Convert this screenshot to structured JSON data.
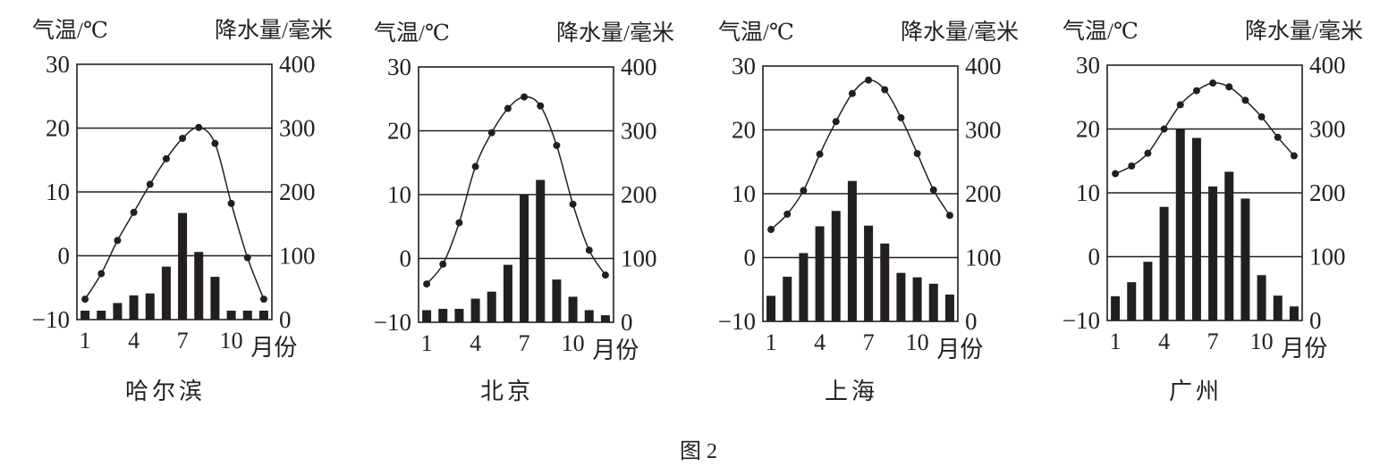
{
  "caption": "图 2",
  "chart_data": [
    {
      "type": "bar+line",
      "title": "哈尔滨",
      "ylabel_left": "气温/℃",
      "ylabel_right": "降水量/毫米",
      "xlabel": "月份",
      "x": [
        1,
        2,
        3,
        4,
        5,
        6,
        7,
        8,
        9,
        10,
        11,
        12
      ],
      "x_tick_labels": [
        "1",
        "4",
        "7",
        "10"
      ],
      "ylim_left": [
        -10,
        30
      ],
      "ylim_right": [
        0,
        400
      ],
      "left_ticks": [
        "30",
        "20",
        "10",
        "0",
        "−10"
      ],
      "right_ticks": [
        "400",
        "300",
        "200",
        "100",
        "0"
      ],
      "grid": true,
      "temperature": [
        -6.8,
        -2.8,
        2.4,
        6.8,
        11.2,
        15.2,
        18.4,
        20.1,
        17.6,
        8.2,
        -0.3,
        -6.8
      ],
      "precipitation": [
        14,
        14,
        26,
        38,
        41,
        83,
        167,
        106,
        67,
        14,
        14,
        14
      ]
    },
    {
      "type": "bar+line",
      "title": "北京",
      "ylabel_left": "气温/℃",
      "ylabel_right": "降水量/毫米",
      "xlabel": "月份",
      "x": [
        1,
        2,
        3,
        4,
        5,
        6,
        7,
        8,
        9,
        10,
        11,
        12
      ],
      "x_tick_labels": [
        "1",
        "4",
        "7",
        "10"
      ],
      "ylim_left": [
        -10,
        30
      ],
      "ylim_right": [
        0,
        400
      ],
      "left_ticks": [
        "30",
        "20",
        "10",
        "0",
        "−10"
      ],
      "right_ticks": [
        "400",
        "300",
        "200",
        "100",
        "0"
      ],
      "grid": true,
      "temperature": [
        -4.0,
        -0.9,
        5.6,
        14.4,
        19.7,
        23.5,
        25.3,
        23.9,
        17.7,
        8.5,
        1.3,
        -2.6
      ],
      "precipitation": [
        19,
        21,
        21,
        37,
        48,
        90,
        200,
        223,
        67,
        40,
        19,
        11
      ]
    },
    {
      "type": "bar+line",
      "title": "上海",
      "ylabel_left": "气温/℃",
      "ylabel_right": "降水量/毫米",
      "xlabel": "月份",
      "x": [
        1,
        2,
        3,
        4,
        5,
        6,
        7,
        8,
        9,
        10,
        11,
        12
      ],
      "x_tick_labels": [
        "1",
        "4",
        "7",
        "10"
      ],
      "ylim_left": [
        -10,
        30
      ],
      "ylim_right": [
        0,
        400
      ],
      "left_ticks": [
        "30",
        "20",
        "10",
        "0",
        "−10"
      ],
      "right_ticks": [
        "400",
        "300",
        "200",
        "100",
        "0"
      ],
      "grid": true,
      "temperature": [
        4.4,
        6.8,
        10.5,
        16.2,
        21.3,
        25.7,
        27.8,
        26.3,
        21.9,
        16.3,
        10.6,
        6.6
      ],
      "precipitation": [
        40,
        70,
        107,
        149,
        173,
        220,
        150,
        122,
        76,
        69,
        59,
        42
      ]
    },
    {
      "type": "bar+line",
      "title": "广州",
      "ylabel_left": "气温/℃",
      "ylabel_right": "降水量/毫米",
      "xlabel": "月份",
      "x": [
        1,
        2,
        3,
        4,
        5,
        6,
        7,
        8,
        9,
        10,
        11,
        12
      ],
      "x_tick_labels": [
        "1",
        "4",
        "7",
        "10"
      ],
      "ylim_left": [
        -10,
        30
      ],
      "ylim_right": [
        0,
        400
      ],
      "left_ticks": [
        "30",
        "20",
        "10",
        "0",
        "−10"
      ],
      "right_ticks": [
        "400",
        "300",
        "200",
        "100",
        "0"
      ],
      "grid": true,
      "temperature": [
        13.0,
        14.2,
        16.2,
        20.0,
        23.8,
        26.0,
        27.2,
        26.6,
        24.5,
        21.9,
        18.7,
        15.8
      ],
      "precipitation": [
        38,
        60,
        92,
        178,
        300,
        286,
        210,
        233,
        191,
        71,
        39,
        22
      ]
    }
  ],
  "colors": {
    "ink": "#231f20",
    "background": "#ffffff"
  }
}
